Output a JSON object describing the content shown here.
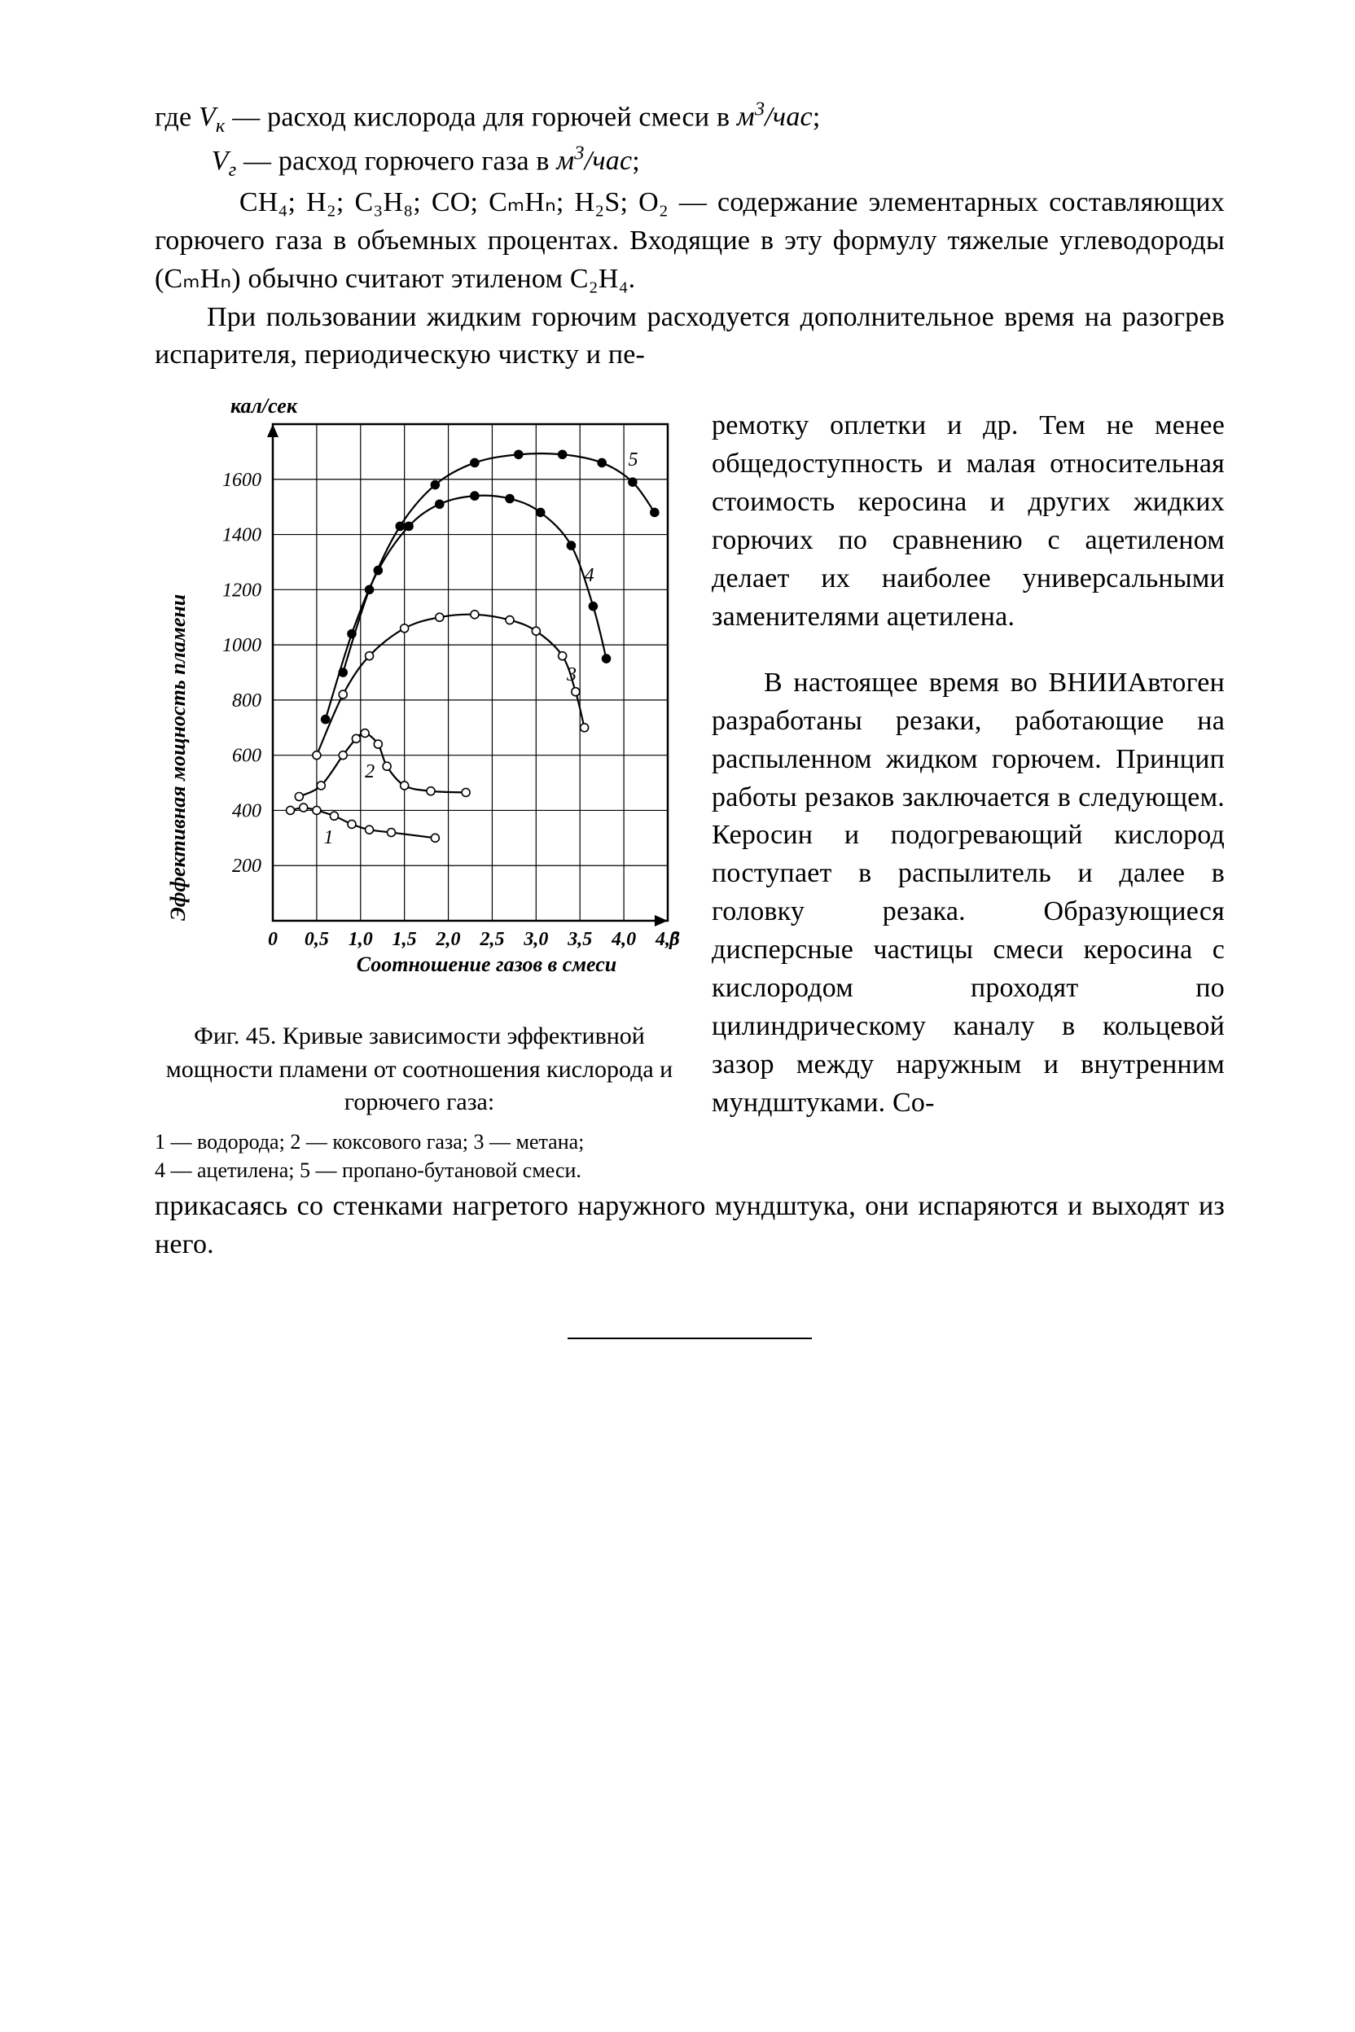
{
  "text": {
    "p1_a": "где ",
    "p1_Vk": "V",
    "p1_Vk_sub": "к",
    "p1_b": " — расход кислорода для горючей смеси в ",
    "p1_unit": "м",
    "p1_unit_sup": "3",
    "p1_unit_tail": "/час",
    "p1_semicolon": ";",
    "p2_pad": "        ",
    "p2_Vg": "V",
    "p2_Vg_sub": "г",
    "p2_b": " — расход горючего газа в ",
    "p2_unit": "м",
    "p2_unit_sup": "3",
    "p2_unit_tail": "/час",
    "p2_semicolon": ";",
    "p3_pad": "        ",
    "p3_body": "CH₄; H₂; C₃H₈; CO; CₘHₙ; H₂S; O₂ — содержание элементарных составляющих горючего газа в объемных процентах. Входящие в эту формулу тяжелые углеводороды (CₘHₙ) обычно считают этиленом C₂H₄.",
    "p4": "При пользовании жидким горючим расходуется дополнительное время на разогрев испарителя, периодическую чистку и пе-",
    "right1": "ремотку оплетки и др. Тем не менее общедоступность и малая относительная стоимость керосина и других жидких горючих по сравнению с ацетиленом делает их наиболее универсальными заменителями ацетилена.",
    "right2": "В настоящее время во ВНИИАвтоген разработаны резаки, работающие на распыленном жидком горючем. Принцип работы резаков заключается в следующем. Керосин и подогревающий кислород поступает в распылитель и далее в головку резака. Образующиеся дисперсные частицы смеси керосина с кислородом проходят по цилиндрическому каналу в кольцевой зазор между наружным и внутренним мундштуками. Со-",
    "tail": "прикасаясь со стенками нагретого наружного мундштука, они испаряются и выходят из него."
  },
  "figure": {
    "caption": "Фиг. 45. Кривые зависимости эффективной мощности пламени от соотношения кислорода и горючего газа:",
    "legend_1": "1 — водорода;  2 — коксового газа;  3 — метана;",
    "legend_2": "4 — ацетилена;  5 — пропано-бутановой смеси.",
    "chart": {
      "type": "line",
      "background_color": "#ffffff",
      "axis_color": "#000000",
      "grid_color": "#000000",
      "line_color": "#000000",
      "marker_fill_open": "#ffffff",
      "marker_fill_solid": "#000000",
      "line_width": 2.2,
      "marker_radius": 5,
      "axis_line_width": 2.5,
      "grid_line_width": 1.2,
      "y_label": "Эффективная мощность пламени",
      "y_unit": "кал/сек",
      "x_label": "Соотношение газов в смеси",
      "x_label_tail": "β",
      "xlim": [
        0,
        4.5
      ],
      "ylim": [
        0,
        1800
      ],
      "xticks": [
        0,
        0.5,
        1.0,
        1.5,
        2.0,
        2.5,
        3.0,
        3.5,
        4.0,
        4.5
      ],
      "xtick_labels": [
        "0",
        "0,5",
        "1,0",
        "1,5",
        "2,0",
        "2,5",
        "3,0",
        "3,5",
        "4,0",
        "4,5"
      ],
      "yticks": [
        200,
        400,
        600,
        800,
        1000,
        1200,
        1400,
        1600
      ],
      "ytick_labels": [
        "200",
        "400",
        "600",
        "800",
        "1000",
        "1200",
        "1400",
        "1600"
      ],
      "series": [
        {
          "id": "1",
          "label_x": 0.58,
          "label_y": 280,
          "marker": "open",
          "points": [
            [
              0.2,
              400
            ],
            [
              0.35,
              410
            ],
            [
              0.5,
              400
            ],
            [
              0.7,
              380
            ],
            [
              0.9,
              350
            ],
            [
              1.1,
              330
            ],
            [
              1.35,
              320
            ],
            [
              1.85,
              300
            ]
          ]
        },
        {
          "id": "2",
          "label_x": 1.05,
          "label_y": 520,
          "marker": "open",
          "points": [
            [
              0.3,
              450
            ],
            [
              0.55,
              490
            ],
            [
              0.8,
              600
            ],
            [
              0.95,
              660
            ],
            [
              1.05,
              680
            ],
            [
              1.2,
              640
            ],
            [
              1.3,
              560
            ],
            [
              1.5,
              490
            ],
            [
              1.8,
              470
            ],
            [
              2.2,
              465
            ]
          ]
        },
        {
          "id": "3",
          "label_x": 3.35,
          "label_y": 870,
          "marker": "open",
          "points": [
            [
              0.5,
              600
            ],
            [
              0.8,
              820
            ],
            [
              1.1,
              960
            ],
            [
              1.5,
              1060
            ],
            [
              1.9,
              1100
            ],
            [
              2.3,
              1110
            ],
            [
              2.7,
              1090
            ],
            [
              3.0,
              1050
            ],
            [
              3.3,
              960
            ],
            [
              3.45,
              830
            ],
            [
              3.55,
              700
            ]
          ]
        },
        {
          "id": "4",
          "label_x": 3.55,
          "label_y": 1230,
          "marker": "solid",
          "points": [
            [
              0.6,
              730
            ],
            [
              0.9,
              1040
            ],
            [
              1.2,
              1270
            ],
            [
              1.55,
              1430
            ],
            [
              1.9,
              1510
            ],
            [
              2.3,
              1540
            ],
            [
              2.7,
              1530
            ],
            [
              3.05,
              1480
            ],
            [
              3.4,
              1360
            ],
            [
              3.65,
              1140
            ],
            [
              3.8,
              950
            ]
          ]
        },
        {
          "id": "5",
          "label_x": 4.05,
          "label_y": 1650,
          "marker": "solid",
          "points": [
            [
              0.8,
              900
            ],
            [
              1.1,
              1200
            ],
            [
              1.45,
              1430
            ],
            [
              1.85,
              1580
            ],
            [
              2.3,
              1660
            ],
            [
              2.8,
              1690
            ],
            [
              3.3,
              1690
            ],
            [
              3.75,
              1660
            ],
            [
              4.1,
              1590
            ],
            [
              4.35,
              1480
            ]
          ]
        }
      ],
      "label_fontsize": 24,
      "tick_fontsize": 24,
      "ylabel_fontsize": 26,
      "yunit_fontsize": 26,
      "xlabel_fontsize": 26
    }
  }
}
